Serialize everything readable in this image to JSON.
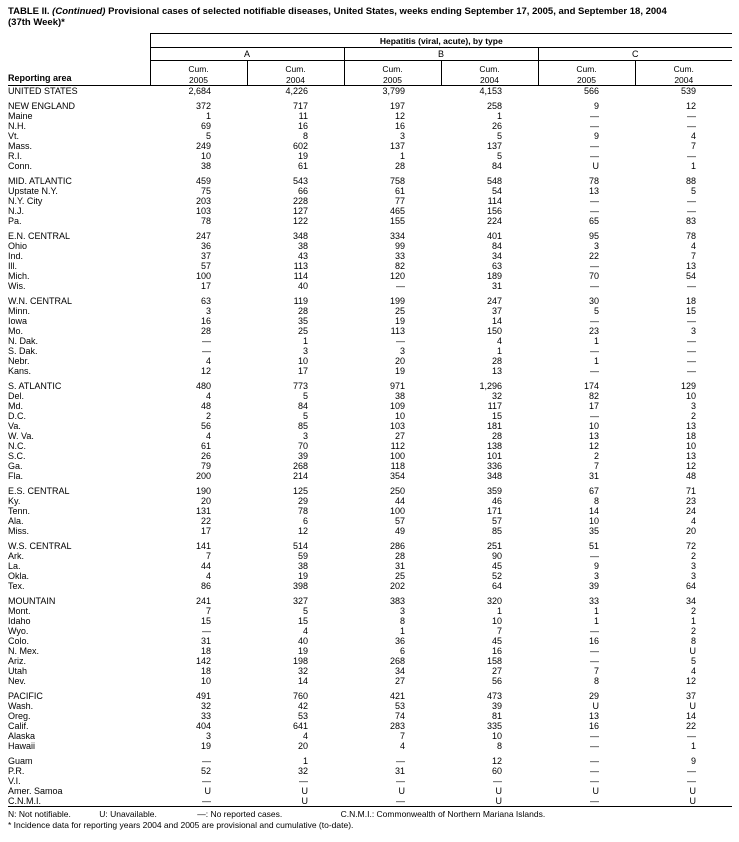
{
  "title": {
    "bold_prefix": "TABLE II.",
    "continued": "(Continued)",
    "rest": "Provisional cases of selected notifiable diseases, United States, weeks ending September 17, 2005, and September 18, 2004",
    "line2": "(37th Week)*"
  },
  "table": {
    "reporting_area_label": "Reporting area",
    "group_header": "Hepatitis (viral, acute), by type",
    "types": [
      "A",
      "B",
      "C"
    ],
    "cum_label": "Cum.",
    "years": [
      "2005",
      "2004"
    ],
    "sections": [
      [
        [
          "UNITED STATES",
          "2,684",
          "4,226",
          "3,799",
          "4,153",
          "566",
          "539"
        ]
      ],
      [
        [
          "NEW ENGLAND",
          "372",
          "717",
          "197",
          "258",
          "9",
          "12"
        ],
        [
          "Maine",
          "1",
          "11",
          "12",
          "1",
          "—",
          "—"
        ],
        [
          "N.H.",
          "69",
          "16",
          "16",
          "26",
          "—",
          "—"
        ],
        [
          "Vt.",
          "5",
          "8",
          "3",
          "5",
          "9",
          "4"
        ],
        [
          "Mass.",
          "249",
          "602",
          "137",
          "137",
          "—",
          "7"
        ],
        [
          "R.I.",
          "10",
          "19",
          "1",
          "5",
          "—",
          "—"
        ],
        [
          "Conn.",
          "38",
          "61",
          "28",
          "84",
          "U",
          "1"
        ]
      ],
      [
        [
          "MID. ATLANTIC",
          "459",
          "543",
          "758",
          "548",
          "78",
          "88"
        ],
        [
          "Upstate N.Y.",
          "75",
          "66",
          "61",
          "54",
          "13",
          "5"
        ],
        [
          "N.Y. City",
          "203",
          "228",
          "77",
          "114",
          "—",
          "—"
        ],
        [
          "N.J.",
          "103",
          "127",
          "465",
          "156",
          "—",
          "—"
        ],
        [
          "Pa.",
          "78",
          "122",
          "155",
          "224",
          "65",
          "83"
        ]
      ],
      [
        [
          "E.N. CENTRAL",
          "247",
          "348",
          "334",
          "401",
          "95",
          "78"
        ],
        [
          "Ohio",
          "36",
          "38",
          "99",
          "84",
          "3",
          "4"
        ],
        [
          "Ind.",
          "37",
          "43",
          "33",
          "34",
          "22",
          "7"
        ],
        [
          "Ill.",
          "57",
          "113",
          "82",
          "63",
          "—",
          "13"
        ],
        [
          "Mich.",
          "100",
          "114",
          "120",
          "189",
          "70",
          "54"
        ],
        [
          "Wis.",
          "17",
          "40",
          "—",
          "31",
          "—",
          "—"
        ]
      ],
      [
        [
          "W.N. CENTRAL",
          "63",
          "119",
          "199",
          "247",
          "30",
          "18"
        ],
        [
          "Minn.",
          "3",
          "28",
          "25",
          "37",
          "5",
          "15"
        ],
        [
          "Iowa",
          "16",
          "35",
          "19",
          "14",
          "—",
          "—"
        ],
        [
          "Mo.",
          "28",
          "25",
          "113",
          "150",
          "23",
          "3"
        ],
        [
          "N. Dak.",
          "—",
          "1",
          "—",
          "4",
          "1",
          "—"
        ],
        [
          "S. Dak.",
          "—",
          "3",
          "3",
          "1",
          "—",
          "—"
        ],
        [
          "Nebr.",
          "4",
          "10",
          "20",
          "28",
          "1",
          "—"
        ],
        [
          "Kans.",
          "12",
          "17",
          "19",
          "13",
          "—",
          "—"
        ]
      ],
      [
        [
          "S. ATLANTIC",
          "480",
          "773",
          "971",
          "1,296",
          "174",
          "129"
        ],
        [
          "Del.",
          "4",
          "5",
          "38",
          "32",
          "82",
          "10"
        ],
        [
          "Md.",
          "48",
          "84",
          "109",
          "117",
          "17",
          "3"
        ],
        [
          "D.C.",
          "2",
          "5",
          "10",
          "15",
          "—",
          "2"
        ],
        [
          "Va.",
          "56",
          "85",
          "103",
          "181",
          "10",
          "13"
        ],
        [
          "W. Va.",
          "4",
          "3",
          "27",
          "28",
          "13",
          "18"
        ],
        [
          "N.C.",
          "61",
          "70",
          "112",
          "138",
          "12",
          "10"
        ],
        [
          "S.C.",
          "26",
          "39",
          "100",
          "101",
          "2",
          "13"
        ],
        [
          "Ga.",
          "79",
          "268",
          "118",
          "336",
          "7",
          "12"
        ],
        [
          "Fla.",
          "200",
          "214",
          "354",
          "348",
          "31",
          "48"
        ]
      ],
      [
        [
          "E.S. CENTRAL",
          "190",
          "125",
          "250",
          "359",
          "67",
          "71"
        ],
        [
          "Ky.",
          "20",
          "29",
          "44",
          "46",
          "8",
          "23"
        ],
        [
          "Tenn.",
          "131",
          "78",
          "100",
          "171",
          "14",
          "24"
        ],
        [
          "Ala.",
          "22",
          "6",
          "57",
          "57",
          "10",
          "4"
        ],
        [
          "Miss.",
          "17",
          "12",
          "49",
          "85",
          "35",
          "20"
        ]
      ],
      [
        [
          "W.S. CENTRAL",
          "141",
          "514",
          "286",
          "251",
          "51",
          "72"
        ],
        [
          "Ark.",
          "7",
          "59",
          "28",
          "90",
          "—",
          "2"
        ],
        [
          "La.",
          "44",
          "38",
          "31",
          "45",
          "9",
          "3"
        ],
        [
          "Okla.",
          "4",
          "19",
          "25",
          "52",
          "3",
          "3"
        ],
        [
          "Tex.",
          "86",
          "398",
          "202",
          "64",
          "39",
          "64"
        ]
      ],
      [
        [
          "MOUNTAIN",
          "241",
          "327",
          "383",
          "320",
          "33",
          "34"
        ],
        [
          "Mont.",
          "7",
          "5",
          "3",
          "1",
          "1",
          "2"
        ],
        [
          "Idaho",
          "15",
          "15",
          "8",
          "10",
          "1",
          "1"
        ],
        [
          "Wyo.",
          "—",
          "4",
          "1",
          "7",
          "—",
          "2"
        ],
        [
          "Colo.",
          "31",
          "40",
          "36",
          "45",
          "16",
          "8"
        ],
        [
          "N. Mex.",
          "18",
          "19",
          "6",
          "16",
          "—",
          "U"
        ],
        [
          "Ariz.",
          "142",
          "198",
          "268",
          "158",
          "—",
          "5"
        ],
        [
          "Utah",
          "18",
          "32",
          "34",
          "27",
          "7",
          "4"
        ],
        [
          "Nev.",
          "10",
          "14",
          "27",
          "56",
          "8",
          "12"
        ]
      ],
      [
        [
          "PACIFIC",
          "491",
          "760",
          "421",
          "473",
          "29",
          "37"
        ],
        [
          "Wash.",
          "32",
          "42",
          "53",
          "39",
          "U",
          "U"
        ],
        [
          "Oreg.",
          "33",
          "53",
          "74",
          "81",
          "13",
          "14"
        ],
        [
          "Calif.",
          "404",
          "641",
          "283",
          "335",
          "16",
          "22"
        ],
        [
          "Alaska",
          "3",
          "4",
          "7",
          "10",
          "—",
          "—"
        ],
        [
          "Hawaii",
          "19",
          "20",
          "4",
          "8",
          "—",
          "1"
        ]
      ],
      [
        [
          "Guam",
          "—",
          "1",
          "—",
          "12",
          "—",
          "9"
        ],
        [
          "P.R.",
          "52",
          "32",
          "31",
          "60",
          "—",
          "—"
        ],
        [
          "V.I.",
          "—",
          "—",
          "—",
          "—",
          "—",
          "—"
        ],
        [
          "Amer. Samoa",
          "U",
          "U",
          "U",
          "U",
          "U",
          "U"
        ],
        [
          "C.N.M.I.",
          "—",
          "U",
          "—",
          "U",
          "—",
          "U"
        ]
      ]
    ]
  },
  "footnotes": {
    "legend": [
      "N: Not notifiable.",
      "U: Unavailable.",
      "—: No reported cases.",
      "C.N.M.I.: Commonwealth of Northern Mariana Islands."
    ],
    "note": "* Incidence data for reporting years 2004 and 2005 are provisional and cumulative (to-date)."
  }
}
